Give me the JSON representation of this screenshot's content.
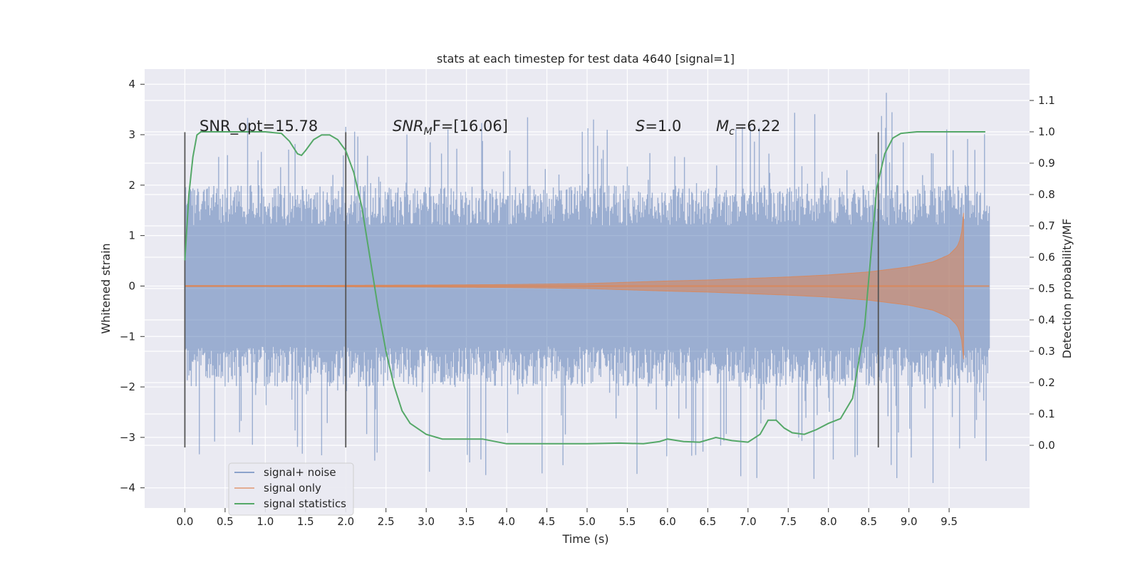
{
  "chart_data": {
    "type": "line",
    "title": "stats at each timestep for test data 4640 [signal=1]",
    "xlabel": "Time (s)",
    "ylabel": "Whitened strain",
    "ylabel_right": "Detection probability/MF",
    "xlim": [
      -0.5,
      10.5
    ],
    "ylim": [
      -4.4,
      4.3
    ],
    "ylim_right": [
      -0.2,
      1.2
    ],
    "x_ticks": [
      0.0,
      0.5,
      1.0,
      1.5,
      2.0,
      2.5,
      3.0,
      3.5,
      4.0,
      4.5,
      5.0,
      5.5,
      6.0,
      6.5,
      7.0,
      7.5,
      8.0,
      8.5,
      9.0,
      9.5
    ],
    "x_tick_labels": [
      "0.0",
      "0.5",
      "1.0",
      "1.5",
      "2.0",
      "2.5",
      "3.0",
      "3.5",
      "4.0",
      "4.5",
      "5.0",
      "5.5",
      "6.0",
      "6.5",
      "7.0",
      "7.5",
      "8.0",
      "8.5",
      "9.0",
      "9.5"
    ],
    "y_ticks": [
      4,
      3,
      2,
      1,
      0,
      -1,
      -2,
      -3,
      -4
    ],
    "y_tick_labels": [
      "4",
      "3",
      "2",
      "1",
      "0",
      "−1",
      "−2",
      "−3",
      "−4"
    ],
    "y_right_ticks": [
      1.1,
      1.0,
      0.9,
      0.8,
      0.7,
      0.6,
      0.5,
      0.4,
      0.3,
      0.2,
      0.1,
      0.0
    ],
    "y_right_tick_labels": [
      "1.1",
      "1.0",
      "0.9",
      "0.8",
      "0.7",
      "0.6",
      "0.5",
      "0.4",
      "0.3",
      "0.2",
      "0.1",
      "0.0"
    ],
    "grid": true,
    "legend_position": "lower-left",
    "vertical_markers": [
      0.0,
      2.0,
      8.62
    ],
    "vertical_marker_range": [
      -3.2,
      3.05
    ],
    "annotations": {
      "snr_opt": "SNR_opt=15.78",
      "snr_mf_base": "SNR",
      "snr_mf_sub": "M",
      "snr_mf_rest": "F=[16.06]",
      "s_base": "S",
      "s_rest": "=1.0",
      "mc_base": "M",
      "mc_sub": "c",
      "mc_rest": "=6.22"
    },
    "series": [
      {
        "name": "signal+ noise",
        "axis": "left",
        "color": "#4c72b0",
        "description_range": [
          0.0,
          10.0
        ],
        "envelope_upper": 2.0,
        "envelope_lower": -2.0,
        "peak_max": 3.9,
        "peak_min": -4.05
      },
      {
        "name": "signal only",
        "axis": "left",
        "color": "#dd8452",
        "chirp_end": 9.68,
        "x": [
          0.0,
          1.0,
          2.0,
          3.0,
          4.0,
          5.0,
          6.0,
          6.5,
          7.0,
          7.5,
          8.0,
          8.5,
          9.0,
          9.3,
          9.5,
          9.6,
          9.65,
          9.68
        ],
        "amplitude": [
          0.01,
          0.01,
          0.015,
          0.02,
          0.03,
          0.05,
          0.1,
          0.12,
          0.15,
          0.18,
          0.22,
          0.28,
          0.38,
          0.48,
          0.62,
          0.78,
          0.98,
          1.45
        ]
      },
      {
        "name": "signal statistics",
        "axis": "right",
        "color": "#55a868",
        "x": [
          0.0,
          0.05,
          0.1,
          0.15,
          0.2,
          0.3,
          0.5,
          0.8,
          1.0,
          1.2,
          1.3,
          1.4,
          1.45,
          1.5,
          1.6,
          1.7,
          1.8,
          1.9,
          2.0,
          2.1,
          2.2,
          2.3,
          2.4,
          2.5,
          2.6,
          2.7,
          2.8,
          3.0,
          3.2,
          3.4,
          3.7,
          4.0,
          4.5,
          5.0,
          5.4,
          5.7,
          5.9,
          6.0,
          6.2,
          6.4,
          6.6,
          6.8,
          7.0,
          7.15,
          7.25,
          7.35,
          7.45,
          7.55,
          7.7,
          7.85,
          8.0,
          8.15,
          8.3,
          8.45,
          8.6,
          8.7,
          8.8,
          8.9,
          9.1,
          9.5,
          9.95
        ],
        "y": [
          0.59,
          0.8,
          0.92,
          0.99,
          1.0,
          1.0,
          1.0,
          1.0,
          1.0,
          0.995,
          0.97,
          0.93,
          0.925,
          0.94,
          0.975,
          0.99,
          0.99,
          0.975,
          0.94,
          0.87,
          0.76,
          0.6,
          0.44,
          0.3,
          0.19,
          0.11,
          0.07,
          0.035,
          0.02,
          0.02,
          0.02,
          0.005,
          0.005,
          0.005,
          0.007,
          0.005,
          0.012,
          0.02,
          0.012,
          0.01,
          0.025,
          0.015,
          0.01,
          0.035,
          0.08,
          0.08,
          0.055,
          0.04,
          0.035,
          0.05,
          0.07,
          0.085,
          0.15,
          0.38,
          0.82,
          0.93,
          0.98,
          0.995,
          1.0,
          1.0,
          1.0
        ]
      }
    ]
  }
}
